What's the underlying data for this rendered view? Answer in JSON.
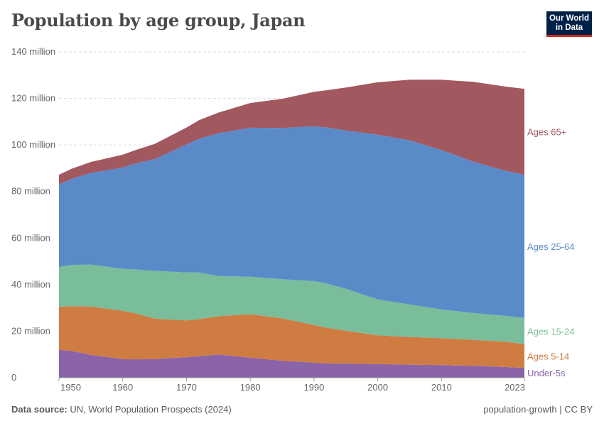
{
  "title": "Population by age group, Japan",
  "logo": {
    "line1": "Our World",
    "line2": "in Data"
  },
  "footer": {
    "source_label": "Data source:",
    "source_text": "UN, World Population Prospects (2024)",
    "right_text": "population-growth | CC BY"
  },
  "chart_data": {
    "type": "area",
    "stacked": true,
    "title": "Population by age group, Japan",
    "ylim": [
      0,
      140000000
    ],
    "xlim": [
      1950,
      2023
    ],
    "y_ticks": [
      {
        "value": 0,
        "label": "0"
      },
      {
        "value": 20000000,
        "label": "20 million"
      },
      {
        "value": 40000000,
        "label": "40 million"
      },
      {
        "value": 60000000,
        "label": "60 million"
      },
      {
        "value": 80000000,
        "label": "80 million"
      },
      {
        "value": 100000000,
        "label": "100 million"
      },
      {
        "value": 120000000,
        "label": "120 million"
      },
      {
        "value": 140000000,
        "label": "140 million"
      }
    ],
    "x_ticks": [
      {
        "value": 1950,
        "label": "1950"
      },
      {
        "value": 1960,
        "label": "1960"
      },
      {
        "value": 1970,
        "label": "1970"
      },
      {
        "value": 1980,
        "label": "1980"
      },
      {
        "value": 1990,
        "label": "1990"
      },
      {
        "value": 2000,
        "label": "2000"
      },
      {
        "value": 2010,
        "label": "2010"
      },
      {
        "value": 2023,
        "label": "2023"
      }
    ],
    "grid": true,
    "legend": "right-inline",
    "x": [
      1950,
      1952,
      1955,
      1960,
      1962,
      1965,
      1970,
      1972,
      1975,
      1980,
      1985,
      1990,
      1992,
      1995,
      2000,
      2005,
      2010,
      2015,
      2020,
      2023
    ],
    "series": [
      {
        "name": "Under-5s",
        "color": "#8a63a8",
        "values": [
          12.0,
          11.5,
          9.8,
          8.0,
          7.9,
          8.0,
          8.8,
          9.2,
          10.0,
          8.6,
          7.3,
          6.5,
          6.1,
          6.0,
          5.9,
          5.6,
          5.4,
          5.1,
          4.6,
          4.2
        ]
      },
      {
        "name": "Ages 5-14",
        "color": "#cf7c43",
        "values": [
          18.5,
          19.2,
          20.8,
          20.8,
          19.8,
          17.4,
          15.8,
          16.0,
          16.4,
          18.7,
          18.2,
          16.2,
          15.4,
          14.2,
          12.3,
          11.9,
          11.6,
          11.2,
          10.9,
          10.2
        ]
      },
      {
        "name": "Ages 15-24",
        "color": "#79bd9a",
        "values": [
          17.0,
          17.8,
          18.0,
          18.0,
          18.8,
          20.5,
          20.6,
          20.0,
          17.3,
          16.1,
          16.8,
          18.8,
          19.0,
          18.0,
          15.4,
          14.0,
          12.3,
          11.5,
          11.1,
          11.3
        ]
      },
      {
        "name": "Ages 25-64",
        "color": "#5b8ac9",
        "values": [
          35.5,
          37.0,
          39.4,
          43.5,
          45.5,
          48.0,
          55.0,
          57.5,
          61.3,
          64.0,
          65.0,
          66.5,
          67.0,
          68.0,
          70.8,
          70.5,
          68.5,
          65.0,
          62.3,
          61.5
        ]
      },
      {
        "name": "Ages 65+",
        "color": "#a2585f",
        "values": [
          4.2,
          4.3,
          4.7,
          5.5,
          5.8,
          6.5,
          7.3,
          8.0,
          8.9,
          10.6,
          12.5,
          14.8,
          16.0,
          18.5,
          22.5,
          26.0,
          30.2,
          34.3,
          36.2,
          36.9
        ]
      }
    ],
    "value_unit": "million"
  }
}
